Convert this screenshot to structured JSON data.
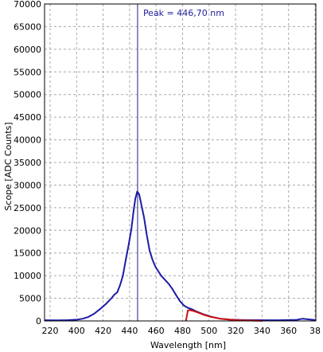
{
  "chart_data": {
    "type": "line",
    "title": "",
    "xlabel": "Wavelength [nm]",
    "ylabel": "Scope [ADC Counts]",
    "ylim": [
      0,
      70000
    ],
    "yticks": [
      0,
      5000,
      10000,
      15000,
      20000,
      25000,
      30000,
      35000,
      40000,
      45000,
      50000,
      55000,
      60000,
      65000,
      70000
    ],
    "xticks": [
      "220",
      "400",
      "420",
      "440",
      "460",
      "480",
      "500",
      "320",
      "340",
      "360",
      "38"
    ],
    "x_range_nm": [
      398,
      540
    ],
    "grid": true,
    "colors": {
      "series_main": "#1c1ca6",
      "series_secondary": "#d01010",
      "marker": "#1c1c8a"
    },
    "peak_marker": {
      "x": 446.7,
      "label": "Peak = 446,70 nm"
    },
    "series": [
      {
        "points": [
          [
            398,
            150
          ],
          [
            405,
            140
          ],
          [
            410,
            170
          ],
          [
            415,
            280
          ],
          [
            418,
            500
          ],
          [
            421,
            900
          ],
          [
            424,
            1600
          ],
          [
            427,
            2600
          ],
          [
            430,
            3700
          ],
          [
            433,
            5000
          ],
          [
            434.5,
            5800
          ],
          [
            436,
            6300
          ],
          [
            437.5,
            7900
          ],
          [
            439,
            10000
          ],
          [
            440.5,
            13500
          ],
          [
            442,
            16800
          ],
          [
            443.5,
            20500
          ],
          [
            444.5,
            24000
          ],
          [
            445.5,
            27000
          ],
          [
            446.5,
            28600
          ],
          [
            447.5,
            28000
          ],
          [
            448.5,
            26000
          ],
          [
            450,
            23000
          ],
          [
            451.5,
            19000
          ],
          [
            453,
            15500
          ],
          [
            454.5,
            13500
          ],
          [
            456,
            12000
          ],
          [
            457.5,
            11000
          ],
          [
            459,
            10000
          ],
          [
            461,
            9100
          ],
          [
            463,
            8200
          ],
          [
            465,
            7000
          ],
          [
            467,
            5600
          ],
          [
            469,
            4300
          ],
          [
            471,
            3400
          ],
          [
            473,
            2900
          ],
          [
            475,
            2600
          ],
          [
            478,
            2000
          ],
          [
            481,
            1500
          ],
          [
            485,
            950
          ],
          [
            490,
            500
          ],
          [
            495,
            300
          ],
          [
            500,
            220
          ],
          [
            505,
            180
          ],
          [
            510,
            170
          ],
          [
            515,
            160
          ],
          [
            520,
            150
          ],
          [
            525,
            200
          ],
          [
            530,
            250
          ],
          [
            533,
            500
          ],
          [
            536,
            350
          ],
          [
            540,
            200
          ]
        ]
      },
      {
        "points": [
          [
            472,
            0
          ],
          [
            473,
            2300
          ],
          [
            474,
            2400
          ],
          [
            476,
            2200
          ],
          [
            478,
            1900
          ],
          [
            481,
            1400
          ],
          [
            485,
            900
          ],
          [
            490,
            500
          ],
          [
            495,
            280
          ],
          [
            500,
            150
          ],
          [
            505,
            80
          ],
          [
            510,
            40
          ],
          [
            512,
            0
          ]
        ]
      }
    ]
  }
}
